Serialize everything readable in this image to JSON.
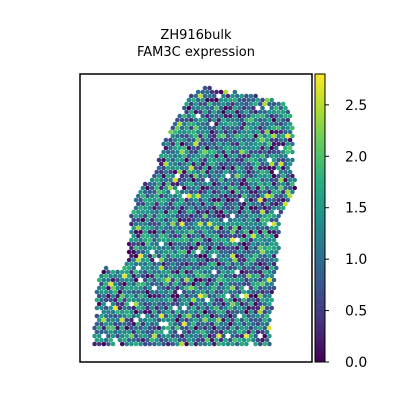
{
  "chart_data": {
    "type": "scatter",
    "subtype": "spatial-hexbin",
    "title_lines": [
      "ZH916bulk",
      "FAM3C expression"
    ],
    "xlabel": "",
    "ylabel": "",
    "colormap": "viridis",
    "color_range": [
      0.0,
      2.8
    ],
    "colorbar_ticks": [
      0.0,
      0.5,
      1.0,
      1.5,
      2.0,
      2.5
    ],
    "colorbar_tick_labels": [
      "0.0",
      "0.5",
      "1.0",
      "1.5",
      "2.0",
      "2.5"
    ],
    "axes_ticks": false,
    "grid": false
  }
}
